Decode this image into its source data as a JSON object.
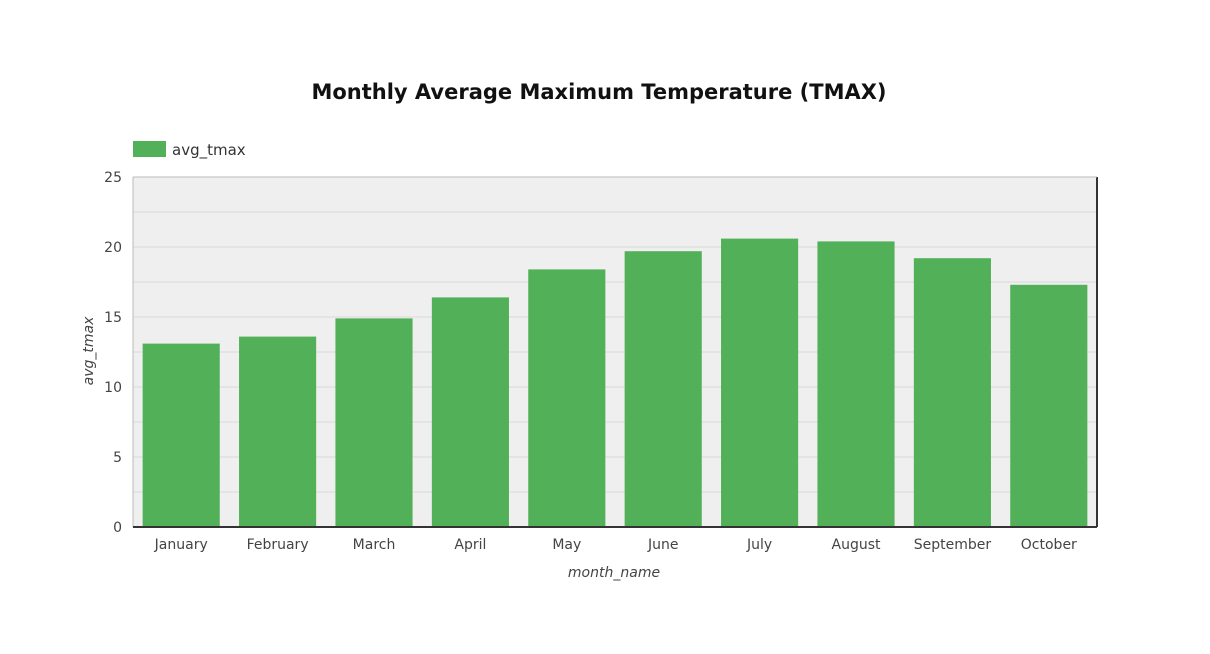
{
  "chart_data": {
    "type": "bar",
    "title": "Monthly Average Maximum Temperature (TMAX)",
    "xlabel": "month_name",
    "ylabel": "avg_tmax",
    "categories": [
      "January",
      "February",
      "March",
      "April",
      "May",
      "June",
      "July",
      "August",
      "September",
      "October"
    ],
    "series": [
      {
        "name": "avg_tmax",
        "values": [
          13.1,
          13.6,
          14.9,
          16.4,
          18.4,
          19.7,
          20.6,
          20.4,
          19.2,
          17.3
        ]
      }
    ],
    "ylim": [
      0,
      25
    ],
    "yticks": [
      0,
      5,
      10,
      15,
      20,
      25
    ],
    "grid": true,
    "legend_position": "top-left",
    "colors": {
      "bar": "#52b058",
      "plot_background": "#efefef",
      "gridline": "#d9d9d9",
      "axis": "#333333"
    }
  }
}
